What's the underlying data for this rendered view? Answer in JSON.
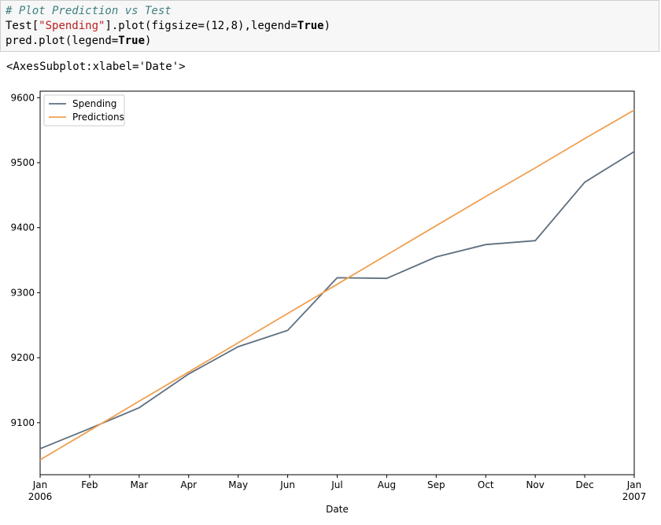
{
  "code_cell": {
    "comment": "# Plot Prediction vs Test",
    "line2_a": "Test[",
    "line2_str": "\"Spending\"",
    "line2_b": "].plot(figsize=(12,8),legend=",
    "line2_kw": "True",
    "line2_c": ")",
    "line3_a": "pred.plot(legend=",
    "line3_kw": "True",
    "line3_b": ")"
  },
  "output": {
    "repr": "<AxesSubplot:xlabel='Date'>"
  },
  "chart_data": {
    "type": "line",
    "xlabel": "Date",
    "ylabel": "",
    "ylim": [
      9020,
      9610
    ],
    "yticks": [
      9100,
      9200,
      9300,
      9400,
      9500,
      9600
    ],
    "x": [
      "Jan 2006",
      "Feb",
      "Mar",
      "Apr",
      "May",
      "Jun",
      "Jul",
      "Aug",
      "Sep",
      "Oct",
      "Nov",
      "Dec",
      "Jan 2007"
    ],
    "xtick_labels": [
      {
        "month": "Jan",
        "year": "2006"
      },
      {
        "month": "Feb",
        "year": ""
      },
      {
        "month": "Mar",
        "year": ""
      },
      {
        "month": "Apr",
        "year": ""
      },
      {
        "month": "May",
        "year": ""
      },
      {
        "month": "Jun",
        "year": ""
      },
      {
        "month": "Jul",
        "year": ""
      },
      {
        "month": "Aug",
        "year": ""
      },
      {
        "month": "Sep",
        "year": ""
      },
      {
        "month": "Oct",
        "year": ""
      },
      {
        "month": "Nov",
        "year": ""
      },
      {
        "month": "Dec",
        "year": ""
      },
      {
        "month": "Jan",
        "year": "2007"
      }
    ],
    "series": [
      {
        "name": "Spending",
        "color": "#5f6f7f",
        "values": [
          9060,
          9091,
          9123,
          9175,
          9217,
          9242,
          9323,
          9322,
          9355,
          9374,
          9380,
          9470,
          9517
        ]
      },
      {
        "name": "Predictions",
        "color": "#f0a050",
        "values": [
          9043,
          9088,
          9133,
          9178,
          9223,
          9268,
          9313,
          9358,
          9403,
          9448,
          9492,
          9537,
          9581
        ]
      }
    ],
    "grid": false,
    "legend": "upper-left"
  }
}
